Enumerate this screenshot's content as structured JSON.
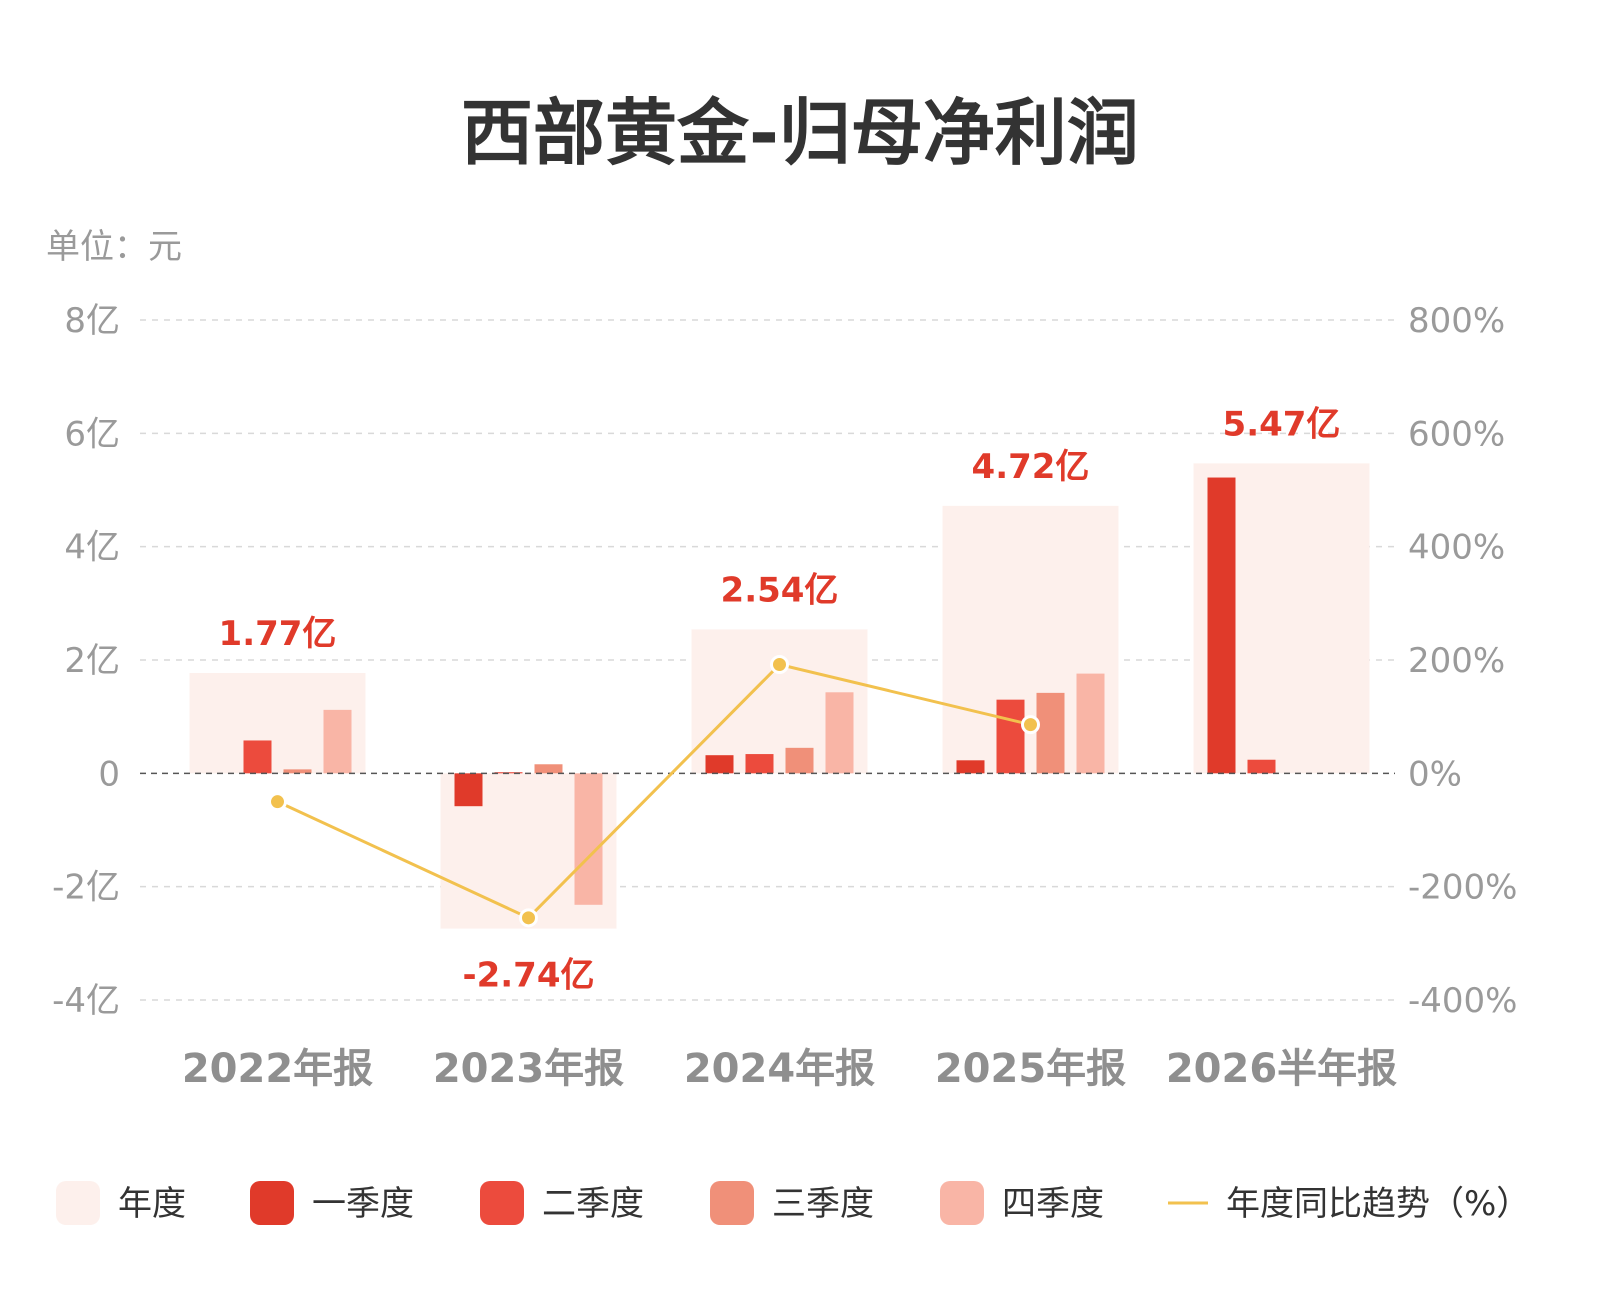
{
  "chart_data": {
    "type": "bar",
    "title": "西部黄金-归母净利润",
    "unit_label": "单位：元",
    "categories": [
      "2022年报",
      "2023年报",
      "2024年报",
      "2025年报",
      "2026半年报"
    ],
    "annual": {
      "name": "年度",
      "values": [
        1.77,
        -2.74,
        2.54,
        4.72,
        5.47
      ],
      "labels": [
        "1.77亿",
        "-2.74亿",
        "2.54亿",
        "4.72亿",
        "5.47亿"
      ]
    },
    "series": [
      {
        "name": "一季度",
        "values": [
          0,
          -0.58,
          0.32,
          0.23,
          5.22
        ]
      },
      {
        "name": "二季度",
        "values": [
          0.58,
          0.02,
          0.34,
          1.3,
          0.24
        ]
      },
      {
        "name": "三季度",
        "values": [
          0.07,
          0.16,
          0.45,
          1.42,
          null
        ]
      },
      {
        "name": "四季度",
        "values": [
          1.12,
          -2.32,
          1.43,
          1.76,
          null
        ]
      }
    ],
    "yoy": {
      "name": "年度同比趋势（%）",
      "values": [
        -50,
        -255,
        192,
        86,
        null
      ]
    },
    "y_left": {
      "ylim": [
        -4,
        8
      ],
      "ticks": [
        -4,
        -2,
        0,
        2,
        4,
        6,
        8
      ],
      "tick_labels": [
        "-4亿",
        "-2亿",
        "0",
        "2亿",
        "4亿",
        "6亿",
        "8亿"
      ]
    },
    "y_right": {
      "ylim": [
        -400,
        800
      ],
      "ticks": [
        -400,
        -200,
        0,
        200,
        400,
        600,
        800
      ],
      "tick_labels": [
        "-400%",
        "-200%",
        "0%",
        "200%",
        "400%",
        "600%",
        "800%"
      ]
    },
    "grid": true,
    "legend_position": "bottom",
    "colors": {
      "annual": "#fdf0ec",
      "q1": "#e03a2a",
      "q2": "#ec4b3d",
      "q3": "#f09079",
      "q4": "#f9b5a6",
      "yoy": "#f2c14e",
      "label": "#e03a2a"
    }
  }
}
